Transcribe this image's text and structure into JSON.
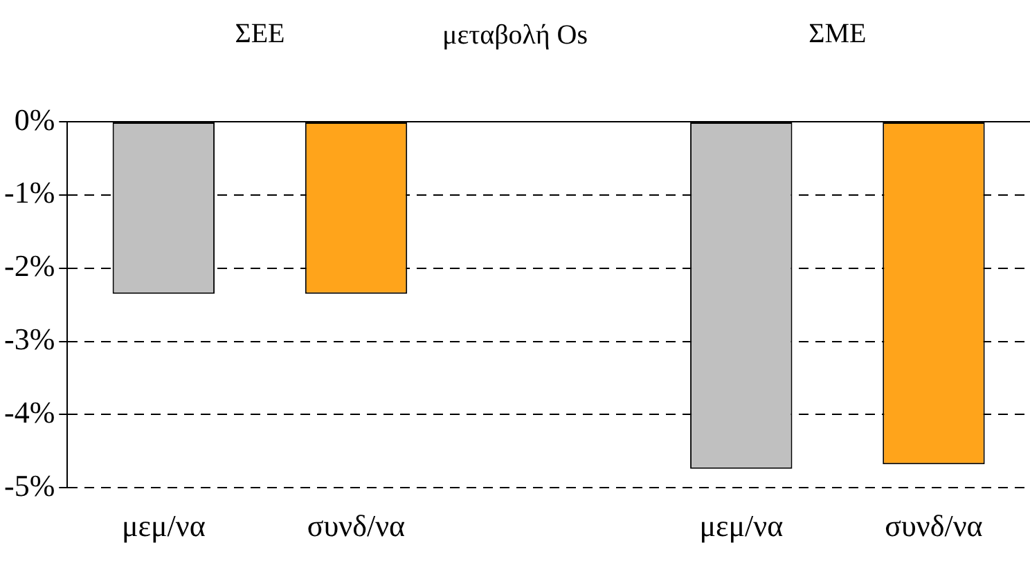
{
  "chart_data": {
    "type": "bar",
    "title": "μεταβολή Os",
    "annotations": [
      "ΣΕΕ",
      "ΣΜΕ"
    ],
    "categories": [
      "μεμ/να",
      "συνδ/να",
      null,
      "μεμ/να",
      "συνδ/να"
    ],
    "values": [
      -2.35,
      -2.35,
      null,
      -4.74,
      -4.68
    ],
    "colors": [
      "#c0c0c0",
      "#ffa41b",
      null,
      "#c0c0c0",
      "#ffa41b"
    ],
    "ylim": [
      -5,
      0
    ],
    "yticks": [
      {
        "value": 0,
        "label": "0%"
      },
      {
        "value": -1,
        "label": "-1%"
      },
      {
        "value": -2,
        "label": "-2%"
      },
      {
        "value": -3,
        "label": "-3%"
      },
      {
        "value": -4,
        "label": "-4%"
      },
      {
        "value": -5,
        "label": "-5%"
      }
    ],
    "grid": "y",
    "legend": false
  }
}
